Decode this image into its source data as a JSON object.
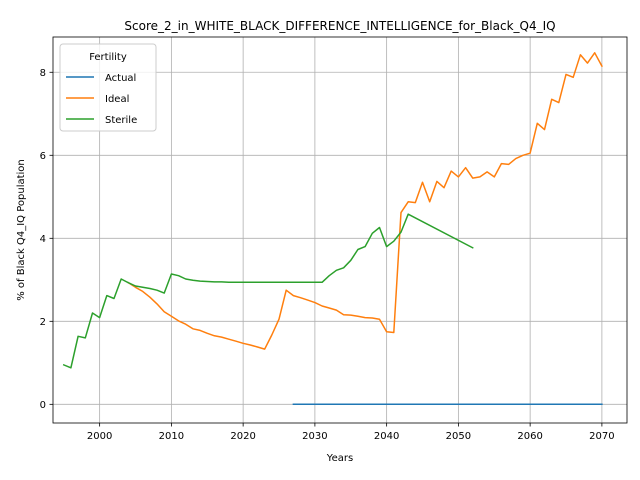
{
  "chart_data": {
    "type": "line",
    "title": "Score_2_in_WHITE_BLACK_DIFFERENCE_INTELLIGENCE_for_Black_Q4_IQ",
    "xlabel": "Years",
    "ylabel": "% of Black Q4_IQ Population",
    "xlim": [
      1993.5,
      2073.5
    ],
    "ylim": [
      -0.45,
      8.85
    ],
    "xticks": [
      2000,
      2010,
      2020,
      2030,
      2040,
      2050,
      2060,
      2070
    ],
    "yticks": [
      0,
      2,
      4,
      6,
      8
    ],
    "grid": true,
    "legend": {
      "title": "Fertility",
      "position": "top-left"
    },
    "series": [
      {
        "name": "Actual",
        "color": "#1f77b4",
        "points": [
          [
            2027,
            0
          ],
          [
            2070,
            0
          ]
        ]
      },
      {
        "name": "Ideal",
        "color": "#ff7f0e",
        "points": [
          [
            2004,
            2.93
          ],
          [
            2005,
            2.82
          ],
          [
            2006,
            2.72
          ],
          [
            2007,
            2.58
          ],
          [
            2008,
            2.42
          ],
          [
            2009,
            2.23
          ],
          [
            2010,
            2.12
          ],
          [
            2011,
            2.01
          ],
          [
            2012,
            1.93
          ],
          [
            2013,
            1.82
          ],
          [
            2014,
            1.78
          ],
          [
            2015,
            1.71
          ],
          [
            2016,
            1.65
          ],
          [
            2017,
            1.62
          ],
          [
            2018,
            1.57
          ],
          [
            2019,
            1.52
          ],
          [
            2020,
            1.47
          ],
          [
            2021,
            1.43
          ],
          [
            2022,
            1.38
          ],
          [
            2023,
            1.33
          ],
          [
            2024,
            1.67
          ],
          [
            2025,
            2.05
          ],
          [
            2026,
            2.75
          ],
          [
            2027,
            2.62
          ],
          [
            2028,
            2.57
          ],
          [
            2029,
            2.51
          ],
          [
            2030,
            2.45
          ],
          [
            2031,
            2.37
          ],
          [
            2032,
            2.32
          ],
          [
            2033,
            2.27
          ],
          [
            2034,
            2.16
          ],
          [
            2035,
            2.15
          ],
          [
            2036,
            2.12
          ],
          [
            2037,
            2.09
          ],
          [
            2038,
            2.08
          ],
          [
            2039,
            2.05
          ],
          [
            2040,
            1.75
          ],
          [
            2041,
            1.73
          ],
          [
            2042,
            4.62
          ],
          [
            2043,
            4.88
          ],
          [
            2044,
            4.86
          ],
          [
            2045,
            5.35
          ],
          [
            2046,
            4.88
          ],
          [
            2047,
            5.37
          ],
          [
            2048,
            5.22
          ],
          [
            2049,
            5.62
          ],
          [
            2050,
            5.48
          ],
          [
            2051,
            5.7
          ],
          [
            2052,
            5.45
          ],
          [
            2053,
            5.48
          ],
          [
            2054,
            5.6
          ],
          [
            2055,
            5.48
          ],
          [
            2056,
            5.8
          ],
          [
            2057,
            5.78
          ],
          [
            2058,
            5.92
          ],
          [
            2059,
            6.0
          ],
          [
            2060,
            6.05
          ],
          [
            2061,
            6.77
          ],
          [
            2062,
            6.62
          ],
          [
            2063,
            7.35
          ],
          [
            2064,
            7.27
          ],
          [
            2065,
            7.95
          ],
          [
            2066,
            7.88
          ],
          [
            2067,
            8.42
          ],
          [
            2068,
            8.22
          ],
          [
            2069,
            8.47
          ],
          [
            2070,
            8.15
          ]
        ]
      },
      {
        "name": "Sterile",
        "color": "#2ca02c",
        "points": [
          [
            1995,
            0.95
          ],
          [
            1996,
            0.88
          ],
          [
            1997,
            1.64
          ],
          [
            1998,
            1.6
          ],
          [
            1999,
            2.2
          ],
          [
            2000,
            2.09
          ],
          [
            2001,
            2.62
          ],
          [
            2002,
            2.55
          ],
          [
            2003,
            3.02
          ],
          [
            2004,
            2.93
          ],
          [
            2005,
            2.85
          ],
          [
            2006,
            2.82
          ],
          [
            2007,
            2.79
          ],
          [
            2008,
            2.75
          ],
          [
            2009,
            2.68
          ],
          [
            2010,
            3.14
          ],
          [
            2011,
            3.1
          ],
          [
            2012,
            3.02
          ],
          [
            2013,
            2.99
          ],
          [
            2014,
            2.97
          ],
          [
            2015,
            2.96
          ],
          [
            2016,
            2.95
          ],
          [
            2017,
            2.95
          ],
          [
            2018,
            2.94
          ],
          [
            2019,
            2.94
          ],
          [
            2020,
            2.94
          ],
          [
            2021,
            2.94
          ],
          [
            2022,
            2.94
          ],
          [
            2023,
            2.94
          ],
          [
            2024,
            2.94
          ],
          [
            2025,
            2.94
          ],
          [
            2026,
            2.94
          ],
          [
            2027,
            2.94
          ],
          [
            2028,
            2.94
          ],
          [
            2029,
            2.94
          ],
          [
            2030,
            2.94
          ],
          [
            2031,
            2.94
          ],
          [
            2032,
            3.1
          ],
          [
            2033,
            3.23
          ],
          [
            2034,
            3.29
          ],
          [
            2035,
            3.47
          ],
          [
            2036,
            3.73
          ],
          [
            2037,
            3.8
          ],
          [
            2038,
            4.12
          ],
          [
            2039,
            4.26
          ],
          [
            2040,
            3.8
          ],
          [
            2041,
            3.93
          ],
          [
            2042,
            4.15
          ],
          [
            2043,
            4.58
          ],
          [
            2052,
            3.77
          ]
        ]
      }
    ]
  }
}
